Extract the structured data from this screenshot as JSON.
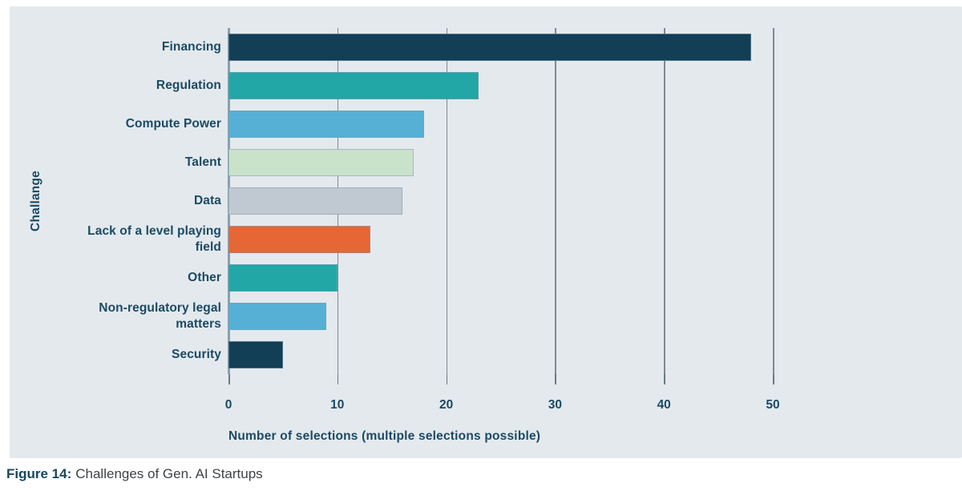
{
  "caption": {
    "prefix": "Figure 14:",
    "text": "Challenges of Gen. AI Startups"
  },
  "chart_data": {
    "type": "bar",
    "orientation": "horizontal",
    "title": "",
    "xlabel": "Number of selections (multiple selections possible)",
    "ylabel": "Challange",
    "categories": [
      "Financing",
      "Regulation",
      "Compute Power",
      "Talent",
      "Data",
      "Lack of a level playing field",
      "Other",
      "Non-regulatory legal matters",
      "Security"
    ],
    "values": [
      48,
      23,
      18,
      17,
      16,
      13,
      10,
      9,
      5
    ],
    "bar_colors": [
      "#123f55",
      "#22a6a6",
      "#56b0d5",
      "#c9e2ca",
      "#c0c9d1",
      "#e66636",
      "#22a6a6",
      "#56b0d5",
      "#123f55"
    ],
    "x_ticks": [
      0,
      10,
      20,
      30,
      40,
      50
    ],
    "xlim": [
      0,
      58.8
    ],
    "grid": "vertical-only",
    "legend": "none",
    "colors": {
      "panel_background": "#e4e9ed",
      "page_background": "#ffffff",
      "label_text": "#1a4a63",
      "gridline": "#80898f",
      "axis_spine": "#8aa0ae",
      "caption_text": "#3e4347"
    }
  }
}
